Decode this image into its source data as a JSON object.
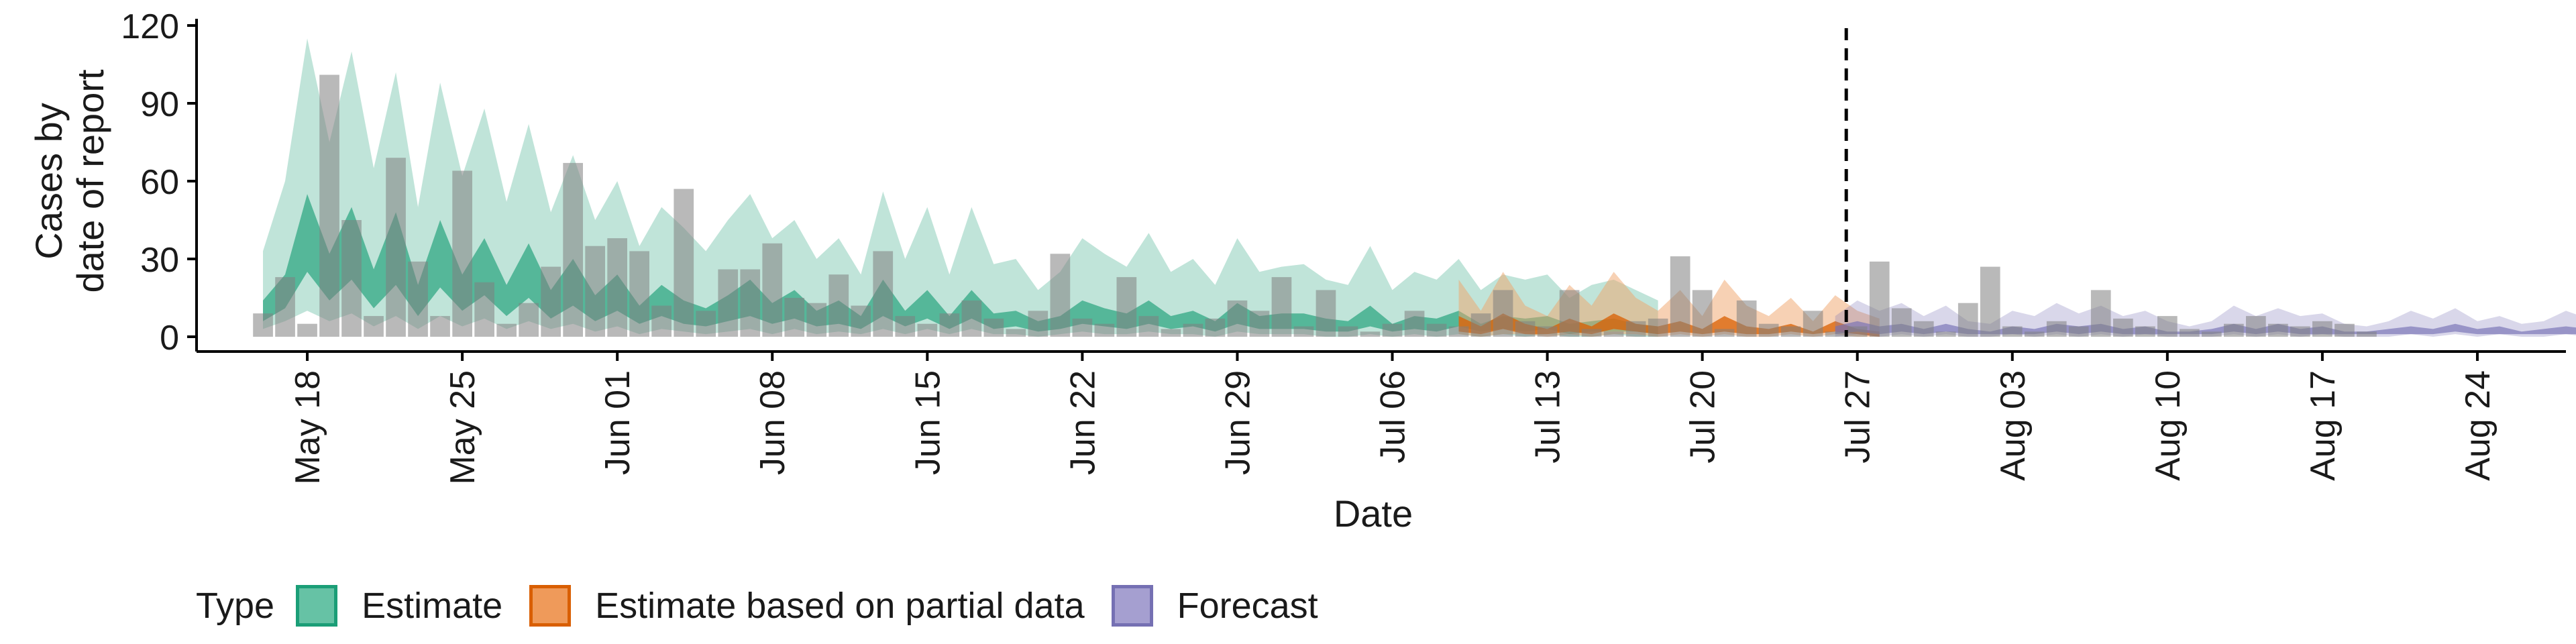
{
  "chart_data": {
    "type": "bar",
    "ylabel": [
      "Cases by",
      "date of report"
    ],
    "xlabel": "Date",
    "ylim": [
      0,
      120
    ],
    "yticks": [
      0,
      30,
      60,
      90,
      120
    ],
    "xlim": [
      "2020-05-13",
      "2020-08-28"
    ],
    "xticks": [
      {
        "date": "2020-05-18",
        "label": "May 18"
      },
      {
        "date": "2020-05-25",
        "label": "May 25"
      },
      {
        "date": "2020-06-01",
        "label": "Jun 01"
      },
      {
        "date": "2020-06-08",
        "label": "Jun 08"
      },
      {
        "date": "2020-06-15",
        "label": "Jun 15"
      },
      {
        "date": "2020-06-22",
        "label": "Jun 22"
      },
      {
        "date": "2020-06-29",
        "label": "Jun 29"
      },
      {
        "date": "2020-07-06",
        "label": "Jul 06"
      },
      {
        "date": "2020-07-13",
        "label": "Jul 13"
      },
      {
        "date": "2020-07-20",
        "label": "Jul 20"
      },
      {
        "date": "2020-07-27",
        "label": "Jul 27"
      },
      {
        "date": "2020-08-03",
        "label": "Aug 03"
      },
      {
        "date": "2020-08-10",
        "label": "Aug 10"
      },
      {
        "date": "2020-08-17",
        "label": "Aug 17"
      },
      {
        "date": "2020-08-24",
        "label": "Aug 24"
      }
    ],
    "forecast_start": "2020-07-26",
    "grid": false,
    "legend_position": "bottom",
    "legend_title": "Type",
    "legend": [
      {
        "label": "Estimate",
        "fill": "#66c2a5",
        "stroke": "#1b9e77"
      },
      {
        "label": "Estimate based on partial data",
        "fill": "#ef9a5a",
        "stroke": "#d95f02"
      },
      {
        "label": "Forecast",
        "fill": "#a59fd0",
        "stroke": "#7570b3"
      }
    ],
    "colors": {
      "Estimate": {
        "outer": "#1b9e77",
        "inner": "#1b9e77"
      },
      "Estimate based on partial data": {
        "outer": "#f0a36a",
        "inner": "#d95f02"
      },
      "Forecast": {
        "outer": "#7570b3",
        "inner": "#7570b3"
      },
      "observed": "#808080",
      "forecast_line": "#000000"
    },
    "observed": {
      "start": "2020-05-16",
      "values": [
        9,
        23,
        5,
        101,
        45,
        8,
        69,
        29,
        8,
        64,
        21,
        5,
        13,
        27,
        67,
        35,
        38,
        33,
        12,
        57,
        10,
        26,
        26,
        36,
        15,
        13,
        24,
        12,
        33,
        8,
        5,
        9,
        14,
        7,
        3,
        10,
        32,
        7,
        5,
        23,
        8,
        3,
        5,
        7,
        14,
        10,
        23,
        4,
        18,
        4,
        2,
        5,
        10,
        5,
        4,
        9,
        18,
        6,
        4,
        18,
        3,
        2,
        6,
        7,
        31,
        18,
        3,
        14,
        5,
        4,
        10,
        2,
        4,
        29,
        11,
        6,
        2,
        13,
        27,
        4,
        2,
        6,
        4,
        18,
        7,
        4,
        8,
        3,
        2,
        5,
        8,
        5,
        4,
        6,
        5,
        2
      ]
    },
    "ribbons": [
      {
        "type": "Estimate",
        "start": "2020-05-16",
        "upper90": [
          33,
          60,
          115,
          75,
          110,
          65,
          102,
          50,
          98,
          62,
          88,
          52,
          82,
          48,
          70,
          45,
          60,
          35,
          50,
          42,
          33,
          45,
          55,
          38,
          45,
          30,
          38,
          24,
          56,
          30,
          50,
          24,
          50,
          28,
          30,
          18,
          25,
          38,
          32,
          27,
          40,
          25,
          30,
          20,
          38,
          25,
          27,
          28,
          22,
          20,
          35,
          18,
          25,
          22,
          30,
          18,
          24,
          22,
          24,
          15,
          20,
          22,
          18,
          14
        ],
        "lower90": [
          3,
          6,
          10,
          6,
          9,
          4,
          8,
          3,
          8,
          4,
          7,
          3,
          6,
          3,
          5,
          2,
          4,
          1,
          3,
          2,
          1,
          2,
          3,
          1,
          3,
          1,
          2,
          1,
          3,
          1,
          3,
          1,
          3,
          1,
          1,
          0,
          1,
          2,
          1,
          1,
          2,
          1,
          1,
          0,
          2,
          1,
          1,
          1,
          0,
          0,
          1,
          0,
          1,
          0,
          1,
          0,
          1,
          0,
          1,
          0,
          0,
          1,
          0,
          0
        ],
        "upper50": [
          14,
          24,
          55,
          32,
          50,
          26,
          48,
          20,
          45,
          24,
          38,
          20,
          36,
          18,
          30,
          16,
          24,
          12,
          20,
          14,
          11,
          16,
          22,
          13,
          18,
          10,
          14,
          8,
          22,
          10,
          18,
          8,
          18,
          9,
          10,
          6,
          8,
          14,
          11,
          9,
          14,
          8,
          10,
          6,
          13,
          8,
          9,
          9,
          7,
          6,
          12,
          5,
          8,
          7,
          10,
          5,
          8,
          7,
          8,
          5,
          6,
          7,
          5,
          4
        ],
        "lower50": [
          6,
          11,
          25,
          14,
          22,
          11,
          20,
          8,
          19,
          10,
          16,
          8,
          15,
          7,
          12,
          6,
          10,
          5,
          8,
          5,
          4,
          6,
          8,
          5,
          7,
          4,
          5,
          3,
          8,
          4,
          7,
          3,
          7,
          3,
          4,
          2,
          3,
          5,
          4,
          3,
          5,
          3,
          4,
          2,
          5,
          3,
          3,
          3,
          2,
          2,
          4,
          2,
          3,
          2,
          4,
          2,
          3,
          2,
          3,
          1,
          2,
          2,
          2,
          1
        ]
      },
      {
        "type": "Estimate based on partial data",
        "start": "2020-07-09",
        "upper90": [
          22,
          10,
          25,
          12,
          8,
          20,
          12,
          25,
          15,
          10,
          18,
          8,
          22,
          12,
          8,
          15,
          6,
          16,
          10,
          7
        ],
        "lower90": [
          1,
          0,
          1,
          1,
          0,
          1,
          0,
          1,
          1,
          0,
          1,
          0,
          1,
          0,
          0,
          1,
          0,
          1,
          0,
          0
        ],
        "upper50": [
          8,
          4,
          9,
          5,
          3,
          7,
          4,
          9,
          5,
          4,
          6,
          3,
          8,
          4,
          3,
          5,
          2,
          6,
          3,
          2
        ],
        "lower50": [
          2,
          1,
          3,
          1,
          1,
          2,
          1,
          3,
          2,
          1,
          2,
          1,
          2,
          1,
          1,
          2,
          1,
          2,
          1,
          0
        ]
      },
      {
        "type": "Forecast",
        "start": "2020-07-26",
        "upper90": [
          8,
          14,
          10,
          13,
          8,
          12,
          6,
          5,
          10,
          8,
          13,
          9,
          12,
          8,
          10,
          6,
          4,
          6,
          12,
          8,
          11,
          8,
          9,
          5,
          4,
          6,
          10,
          7,
          11,
          6,
          8,
          5,
          6,
          10,
          7
        ],
        "lower90": [
          0,
          1,
          0,
          1,
          0,
          1,
          0,
          0,
          1,
          0,
          1,
          0,
          1,
          0,
          1,
          0,
          0,
          0,
          1,
          0,
          1,
          0,
          1,
          0,
          0,
          0,
          1,
          0,
          1,
          0,
          1,
          0,
          0,
          1,
          0
        ],
        "upper50": [
          4,
          6,
          4,
          5,
          3,
          5,
          3,
          2,
          4,
          3,
          5,
          4,
          5,
          3,
          4,
          2,
          2,
          3,
          5,
          3,
          5,
          3,
          4,
          2,
          2,
          3,
          4,
          3,
          5,
          3,
          4,
          2,
          3,
          4,
          3
        ],
        "lower50": [
          1,
          2,
          1,
          2,
          1,
          2,
          1,
          1,
          1,
          1,
          2,
          1,
          2,
          1,
          1,
          1,
          1,
          1,
          2,
          1,
          2,
          1,
          1,
          1,
          1,
          1,
          1,
          1,
          2,
          1,
          1,
          1,
          1,
          1,
          1
        ]
      }
    ]
  }
}
